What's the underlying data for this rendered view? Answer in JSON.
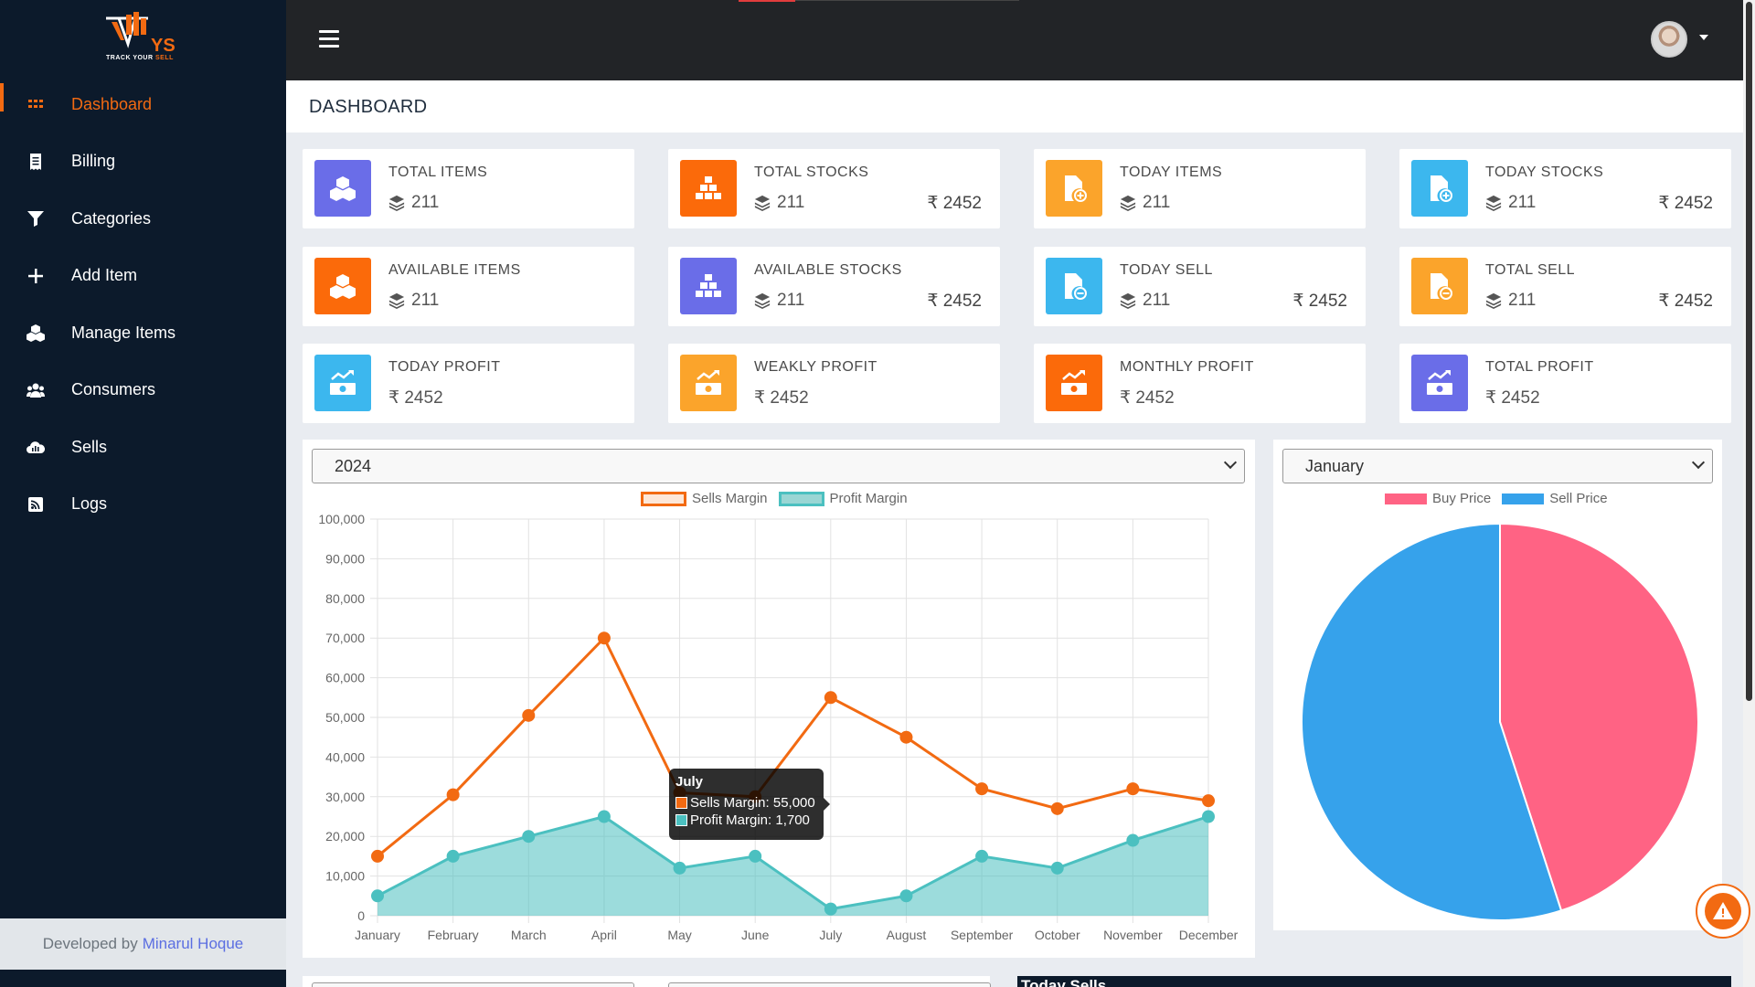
{
  "brand": {
    "logo_text": "YS",
    "tagline_a": "TRACK YOUR",
    "tagline_b": "SELL"
  },
  "sidebar": {
    "items": [
      {
        "label": "Dashboard",
        "icon": "grid-icon",
        "active": true
      },
      {
        "label": "Billing",
        "icon": "receipt-icon"
      },
      {
        "label": "Categories",
        "icon": "filter-icon"
      },
      {
        "label": "Add Item",
        "icon": "plus-icon"
      },
      {
        "label": "Manage Items",
        "icon": "cubes-icon"
      },
      {
        "label": "Consumers",
        "icon": "users-icon"
      },
      {
        "label": "Sells",
        "icon": "cloud-chart-icon"
      },
      {
        "label": "Logs",
        "icon": "rss-icon"
      }
    ],
    "footer_prefix": "Developed by",
    "footer_author": "Minarul Hoque"
  },
  "page": {
    "title": "DASHBOARD"
  },
  "cards": [
    {
      "title": "TOTAL ITEMS",
      "count": "211",
      "amount": "",
      "color": "#6a6de8",
      "icon": "cubes-icon"
    },
    {
      "title": "TOTAL STOCKS",
      "count": "211",
      "amount": "₹ 2452",
      "color": "#fb6a0a",
      "icon": "boxes-stacked-icon"
    },
    {
      "title": "TODAY ITEMS",
      "count": "211",
      "amount": "",
      "color": "#fba42b",
      "icon": "file-plus-icon"
    },
    {
      "title": "TODAY STOCKS",
      "count": "211",
      "amount": "₹ 2452",
      "color": "#3cb7ee",
      "icon": "file-plus-icon"
    },
    {
      "title": "AVAILABLE ITEMS",
      "count": "211",
      "amount": "",
      "color": "#fb6a0a",
      "icon": "cubes-icon"
    },
    {
      "title": "AVAILABLE STOCKS",
      "count": "211",
      "amount": "₹ 2452",
      "color": "#6a6de8",
      "icon": "boxes-stacked-icon"
    },
    {
      "title": "TODAY SELL",
      "count": "211",
      "amount": "₹ 2452",
      "color": "#3cb7ee",
      "icon": "file-minus-icon"
    },
    {
      "title": "TOTAL SELL",
      "count": "211",
      "amount": "₹ 2452",
      "color": "#fba42b",
      "icon": "file-minus-icon"
    },
    {
      "title": "TODAY PROFIT",
      "count": "",
      "amount_left": "₹ 2452",
      "color": "#3cb7ee",
      "icon": "money-chart-icon"
    },
    {
      "title": "WEAKLY PROFIT",
      "count": "",
      "amount_left": "₹ 2452",
      "color": "#fba42b",
      "icon": "money-chart-icon"
    },
    {
      "title": "MONTHLY PROFIT",
      "count": "",
      "amount_left": "₹ 2452",
      "color": "#fb6a0a",
      "icon": "money-chart-icon"
    },
    {
      "title": "TOTAL PROFIT",
      "count": "",
      "amount_left": "₹ 2452",
      "color": "#6a6de8",
      "icon": "money-chart-icon"
    }
  ],
  "year_select": {
    "value": "2024"
  },
  "month_select": {
    "value": "January"
  },
  "chart_data": [
    {
      "type": "line",
      "x": [
        "January",
        "February",
        "March",
        "April",
        "May",
        "June",
        "July",
        "August",
        "September",
        "October",
        "November",
        "December"
      ],
      "series": [
        {
          "name": "Sells Margin",
          "color": "#f26a12",
          "values": [
            15000,
            30500,
            50500,
            70000,
            31000,
            30000,
            55000,
            45000,
            32000,
            27000,
            32000,
            29000
          ]
        },
        {
          "name": "Profit Margin",
          "color": "#4bc0c0",
          "fill": true,
          "values": [
            5000,
            15000,
            20000,
            25000,
            12000,
            15000,
            1700,
            5000,
            15000,
            12000,
            19000,
            25000
          ]
        }
      ],
      "ylim": [
        0,
        100000
      ],
      "yticks": [
        "0",
        "10,000",
        "20,000",
        "30,000",
        "40,000",
        "50,000",
        "60,000",
        "70,000",
        "80,000",
        "90,000",
        "100,000"
      ],
      "grid": true,
      "legend": "top-center"
    },
    {
      "type": "pie",
      "categories": [
        "Buy Price",
        "Sell Price"
      ],
      "values": [
        45,
        55
      ],
      "colors": [
        "#ff6384",
        "#36a2eb"
      ],
      "legend": "top-center"
    }
  ],
  "tooltip": {
    "title": "July",
    "row1": "Sells Margin: 55,000",
    "row2": "Profit Margin: 1,700"
  },
  "bottom": {
    "today_sells_title": "Today Sells"
  }
}
